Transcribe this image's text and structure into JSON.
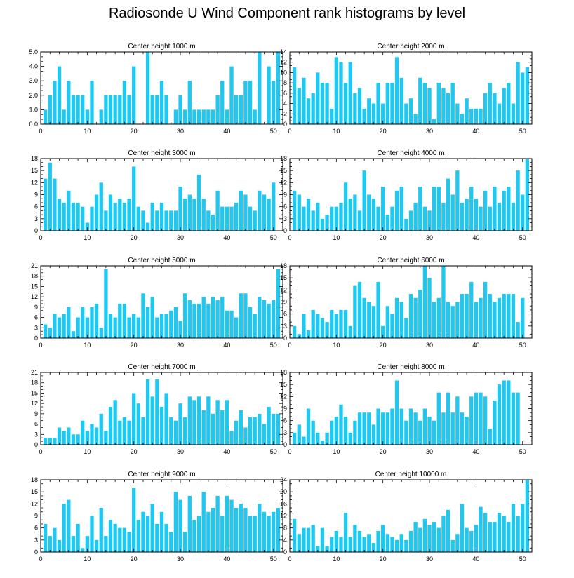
{
  "figure": {
    "title": "Radiosonde U Wind Component rank histograms by level"
  },
  "chart_data": [
    {
      "type": "bar",
      "title": "Center height 1000 m",
      "xlim": [
        0,
        52
      ],
      "ylim": [
        0,
        5
      ],
      "xticks": [
        0,
        10,
        20,
        30,
        40,
        50
      ],
      "yticks": [
        0,
        1,
        2,
        3,
        4,
        5
      ],
      "ytick_labels": [
        "0.0",
        "1.0",
        "2.0",
        "3.0",
        "4.0",
        "5.0"
      ],
      "x": [
        1,
        2,
        3,
        4,
        5,
        6,
        7,
        8,
        9,
        10,
        11,
        12,
        13,
        14,
        15,
        16,
        17,
        18,
        19,
        20,
        21,
        22,
        23,
        24,
        25,
        26,
        27,
        28,
        29,
        30,
        31,
        32,
        33,
        34,
        35,
        36,
        37,
        38,
        39,
        40,
        41,
        42,
        43,
        44,
        45,
        46,
        47,
        48,
        49,
        50,
        51
      ],
      "values": [
        1,
        2,
        3,
        4,
        1,
        3,
        2,
        2,
        2,
        1,
        3,
        0,
        1,
        2,
        2,
        2,
        2,
        3,
        2,
        4,
        0,
        0,
        5,
        2,
        2,
        3,
        2,
        0,
        1,
        2,
        1,
        3,
        1,
        1,
        1,
        1,
        1,
        2,
        3,
        1,
        4,
        2,
        2,
        3,
        3,
        1,
        5,
        0,
        4,
        3,
        5
      ]
    },
    {
      "type": "bar",
      "title": "Center height 2000 m",
      "xlim": [
        0,
        52
      ],
      "ylim": [
        0,
        14
      ],
      "xticks": [
        0,
        10,
        20,
        30,
        40,
        50
      ],
      "yticks": [
        0,
        2,
        4,
        6,
        8,
        10,
        12,
        14
      ],
      "ytick_labels": [
        "0",
        "2",
        "4",
        "6",
        "8",
        "10",
        "12",
        "14"
      ],
      "x": [
        1,
        2,
        3,
        4,
        5,
        6,
        7,
        8,
        9,
        10,
        11,
        12,
        13,
        14,
        15,
        16,
        17,
        18,
        19,
        20,
        21,
        22,
        23,
        24,
        25,
        26,
        27,
        28,
        29,
        30,
        31,
        32,
        33,
        34,
        35,
        36,
        37,
        38,
        39,
        40,
        41,
        42,
        43,
        44,
        45,
        46,
        47,
        48,
        49,
        50,
        51
      ],
      "values": [
        11,
        7,
        9,
        5,
        6,
        10,
        8,
        8,
        3,
        13,
        12,
        8,
        12,
        6,
        7,
        3,
        5,
        4,
        8,
        4,
        8,
        8,
        13,
        9,
        4,
        5,
        2,
        9,
        8,
        7,
        1,
        8,
        7,
        6,
        8,
        4,
        2,
        5,
        3,
        3,
        3,
        6,
        8,
        6,
        4,
        7,
        8,
        4,
        12,
        10,
        11
      ]
    },
    {
      "type": "bar",
      "title": "Center height 3000 m",
      "xlim": [
        0,
        52
      ],
      "ylim": [
        0,
        18
      ],
      "xticks": [
        0,
        10,
        20,
        30,
        40,
        50
      ],
      "yticks": [
        0,
        3,
        6,
        9,
        12,
        15,
        18
      ],
      "ytick_labels": [
        "0",
        "3",
        "6",
        "9",
        "12",
        "15",
        "18"
      ],
      "x": [
        1,
        2,
        3,
        4,
        5,
        6,
        7,
        8,
        9,
        10,
        11,
        12,
        13,
        14,
        15,
        16,
        17,
        18,
        19,
        20,
        21,
        22,
        23,
        24,
        25,
        26,
        27,
        28,
        29,
        30,
        31,
        32,
        33,
        34,
        35,
        36,
        37,
        38,
        39,
        40,
        41,
        42,
        43,
        44,
        45,
        46,
        47,
        48,
        49,
        50,
        51
      ],
      "values": [
        13,
        17,
        13,
        8,
        7,
        10,
        7,
        7,
        6,
        2,
        6,
        9,
        12,
        5,
        9,
        7,
        8,
        7,
        8,
        16,
        6,
        5,
        2,
        7,
        5,
        7,
        5,
        5,
        5,
        11,
        8,
        9,
        8,
        14,
        8,
        5,
        4,
        10,
        6,
        6,
        6,
        7,
        10,
        9,
        6,
        5,
        10,
        9,
        8,
        12,
        0
      ]
    },
    {
      "type": "bar",
      "title": "Center height 4000 m",
      "xlim": [
        0,
        52
      ],
      "ylim": [
        0,
        18
      ],
      "xticks": [
        0,
        10,
        20,
        30,
        40,
        50
      ],
      "yticks": [
        0,
        3,
        6,
        9,
        12,
        15,
        18
      ],
      "ytick_labels": [
        "0",
        "3",
        "6",
        "9",
        "12",
        "15",
        "18"
      ],
      "x": [
        1,
        2,
        3,
        4,
        5,
        6,
        7,
        8,
        9,
        10,
        11,
        12,
        13,
        14,
        15,
        16,
        17,
        18,
        19,
        20,
        21,
        22,
        23,
        24,
        25,
        26,
        27,
        28,
        29,
        30,
        31,
        32,
        33,
        34,
        35,
        36,
        37,
        38,
        39,
        40,
        41,
        42,
        43,
        44,
        45,
        46,
        47,
        48,
        49,
        50,
        51
      ],
      "values": [
        10,
        9,
        6,
        8,
        5,
        7,
        3,
        4,
        6,
        6,
        7,
        12,
        8,
        9,
        5,
        15,
        9,
        8,
        6,
        11,
        4,
        6,
        10,
        11,
        3,
        5,
        7,
        11,
        6,
        5,
        11,
        11,
        7,
        13,
        9,
        15,
        7,
        8,
        11,
        8,
        6,
        10,
        6,
        11,
        7,
        10,
        11,
        7,
        15,
        9,
        18
      ]
    },
    {
      "type": "bar",
      "title": "Center height 5000 m",
      "xlim": [
        0,
        52
      ],
      "ylim": [
        0,
        21
      ],
      "xticks": [
        0,
        10,
        20,
        30,
        40,
        50
      ],
      "yticks": [
        0,
        3,
        6,
        9,
        12,
        15,
        18,
        21
      ],
      "ytick_labels": [
        "0",
        "3",
        "6",
        "9",
        "12",
        "15",
        "18",
        "21"
      ],
      "x": [
        1,
        2,
        3,
        4,
        5,
        6,
        7,
        8,
        9,
        10,
        11,
        12,
        13,
        14,
        15,
        16,
        17,
        18,
        19,
        20,
        21,
        22,
        23,
        24,
        25,
        26,
        27,
        28,
        29,
        30,
        31,
        32,
        33,
        34,
        35,
        36,
        37,
        38,
        39,
        40,
        41,
        42,
        43,
        44,
        45,
        46,
        47,
        48,
        49,
        50,
        51
      ],
      "values": [
        4,
        3,
        7,
        6,
        7,
        9,
        2,
        6,
        9,
        6,
        9,
        10,
        3,
        20,
        7,
        6,
        10,
        10,
        6,
        7,
        6,
        13,
        9,
        12,
        6,
        7,
        7,
        8,
        9,
        5,
        13,
        11,
        10,
        10,
        12,
        10,
        12,
        11,
        12,
        8,
        8,
        6,
        13,
        13,
        9,
        7,
        12,
        11,
        10,
        11,
        20
      ]
    },
    {
      "type": "bar",
      "title": "Center height 6000 m",
      "xlim": [
        0,
        52
      ],
      "ylim": [
        0,
        18
      ],
      "xticks": [
        0,
        10,
        20,
        30,
        40,
        50
      ],
      "yticks": [
        0,
        3,
        6,
        9,
        12,
        15,
        18
      ],
      "ytick_labels": [
        "0",
        "3",
        "6",
        "9",
        "12",
        "15",
        "18"
      ],
      "x": [
        1,
        2,
        3,
        4,
        5,
        6,
        7,
        8,
        9,
        10,
        11,
        12,
        13,
        14,
        15,
        16,
        17,
        18,
        19,
        20,
        21,
        22,
        23,
        24,
        25,
        26,
        27,
        28,
        29,
        30,
        31,
        32,
        33,
        34,
        35,
        36,
        37,
        38,
        39,
        40,
        41,
        42,
        43,
        44,
        45,
        46,
        47,
        48,
        49,
        50,
        51
      ],
      "values": [
        3,
        1,
        6,
        2,
        7,
        6,
        5,
        4,
        7,
        6,
        7,
        7,
        3,
        13,
        14,
        10,
        9,
        8,
        14,
        3,
        8,
        6,
        10,
        9,
        5,
        11,
        10,
        12,
        18,
        15,
        9,
        10,
        18,
        9,
        8,
        9,
        11,
        11,
        14,
        9,
        10,
        14,
        11,
        9,
        10,
        11,
        11,
        11,
        4,
        10,
        0
      ]
    },
    {
      "type": "bar",
      "title": "Center height 7000 m",
      "xlim": [
        0,
        52
      ],
      "ylim": [
        0,
        21
      ],
      "xticks": [
        0,
        10,
        20,
        30,
        40,
        50
      ],
      "yticks": [
        0,
        3,
        6,
        9,
        12,
        15,
        18,
        21
      ],
      "ytick_labels": [
        "0",
        "3",
        "6",
        "9",
        "12",
        "15",
        "18",
        "21"
      ],
      "x": [
        1,
        2,
        3,
        4,
        5,
        6,
        7,
        8,
        9,
        10,
        11,
        12,
        13,
        14,
        15,
        16,
        17,
        18,
        19,
        20,
        21,
        22,
        23,
        24,
        25,
        26,
        27,
        28,
        29,
        30,
        31,
        32,
        33,
        34,
        35,
        36,
        37,
        38,
        39,
        40,
        41,
        42,
        43,
        44,
        45,
        46,
        47,
        48,
        49,
        50,
        51
      ],
      "values": [
        2,
        2,
        2,
        5,
        4,
        5,
        3,
        3,
        7,
        4,
        6,
        5,
        9,
        4,
        11,
        13,
        7,
        8,
        7,
        15,
        12,
        8,
        19,
        14,
        19,
        11,
        15,
        8,
        7,
        12,
        8,
        14,
        13,
        14,
        10,
        14,
        9,
        13,
        10,
        13,
        4,
        7,
        10,
        5,
        8,
        8,
        9,
        6,
        11,
        9,
        9
      ]
    },
    {
      "type": "bar",
      "title": "Center height 8000 m",
      "xlim": [
        0,
        52
      ],
      "ylim": [
        0,
        18
      ],
      "xticks": [
        0,
        10,
        20,
        30,
        40,
        50
      ],
      "yticks": [
        0,
        3,
        6,
        9,
        12,
        15,
        18
      ],
      "ytick_labels": [
        "0",
        "3",
        "6",
        "9",
        "12",
        "15",
        "18"
      ],
      "x": [
        1,
        2,
        3,
        4,
        5,
        6,
        7,
        8,
        9,
        10,
        11,
        12,
        13,
        14,
        15,
        16,
        17,
        18,
        19,
        20,
        21,
        22,
        23,
        24,
        25,
        26,
        27,
        28,
        29,
        30,
        31,
        32,
        33,
        34,
        35,
        36,
        37,
        38,
        39,
        40,
        41,
        42,
        43,
        44,
        45,
        46,
        47,
        48,
        49,
        50,
        51
      ],
      "values": [
        3,
        5,
        2,
        9,
        6,
        3,
        1,
        3,
        6,
        7,
        10,
        7,
        3,
        6,
        8,
        8,
        8,
        5,
        9,
        8,
        8,
        9,
        16,
        9,
        6,
        9,
        8,
        6,
        9,
        7,
        6,
        13,
        8,
        13,
        8,
        12,
        8,
        7,
        12,
        13,
        13,
        12,
        4,
        11,
        15,
        16,
        16,
        13,
        13,
        0,
        0
      ]
    },
    {
      "type": "bar",
      "title": "Center height 9000 m",
      "xlim": [
        0,
        52
      ],
      "ylim": [
        0,
        18
      ],
      "xticks": [
        0,
        10,
        20,
        30,
        40,
        50
      ],
      "yticks": [
        0,
        3,
        6,
        9,
        12,
        15,
        18
      ],
      "ytick_labels": [
        "0",
        "3",
        "6",
        "9",
        "12",
        "15",
        "18"
      ],
      "x": [
        1,
        2,
        3,
        4,
        5,
        6,
        7,
        8,
        9,
        10,
        11,
        12,
        13,
        14,
        15,
        16,
        17,
        18,
        19,
        20,
        21,
        22,
        23,
        24,
        25,
        26,
        27,
        28,
        29,
        30,
        31,
        32,
        33,
        34,
        35,
        36,
        37,
        38,
        39,
        40,
        41,
        42,
        43,
        44,
        45,
        46,
        47,
        48,
        49,
        50,
        51
      ],
      "values": [
        7,
        4,
        6,
        3,
        12,
        13,
        4,
        7,
        1,
        4,
        9,
        3,
        11,
        4,
        8,
        7,
        6,
        6,
        5,
        16,
        8,
        10,
        9,
        12,
        7,
        10,
        7,
        5,
        15,
        13,
        5,
        14,
        8,
        9,
        15,
        10,
        11,
        14,
        9,
        14,
        13,
        11,
        12,
        11,
        9,
        9,
        12,
        10,
        9,
        10,
        11
      ]
    },
    {
      "type": "bar",
      "title": "Center height 10000 m",
      "xlim": [
        0,
        52
      ],
      "ylim": [
        0,
        24
      ],
      "xticks": [
        0,
        10,
        20,
        30,
        40,
        50
      ],
      "yticks": [
        0,
        4,
        8,
        12,
        16,
        20,
        24
      ],
      "ytick_labels": [
        "0",
        "4",
        "8",
        "12",
        "16",
        "20",
        "24"
      ],
      "x": [
        1,
        2,
        3,
        4,
        5,
        6,
        7,
        8,
        9,
        10,
        11,
        12,
        13,
        14,
        15,
        16,
        17,
        18,
        19,
        20,
        21,
        22,
        23,
        24,
        25,
        26,
        27,
        28,
        29,
        30,
        31,
        32,
        33,
        34,
        35,
        36,
        37,
        38,
        39,
        40,
        41,
        42,
        43,
        44,
        45,
        46,
        47,
        48,
        49,
        50,
        51
      ],
      "values": [
        11,
        6,
        8,
        8,
        9,
        2,
        8,
        2,
        5,
        7,
        5,
        13,
        5,
        9,
        7,
        5,
        6,
        3,
        7,
        9,
        6,
        5,
        4,
        6,
        4,
        7,
        10,
        8,
        11,
        9,
        10,
        8,
        12,
        14,
        4,
        6,
        16,
        8,
        7,
        9,
        15,
        13,
        10,
        10,
        13,
        12,
        10,
        16,
        12,
        16,
        24
      ]
    }
  ]
}
